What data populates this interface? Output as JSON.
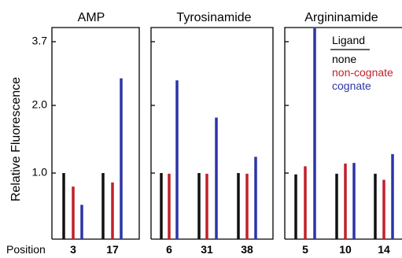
{
  "chart_data": {
    "type": "bar",
    "ylabel": "Relative Fluorescence",
    "y_ticks": [
      "1.0",
      "2.0",
      "3.7"
    ],
    "x_axis_label": "Position",
    "legend": {
      "title": "Ligand",
      "entries": [
        {
          "name": "none",
          "color": "#111111"
        },
        {
          "name": "non-cognate",
          "color": "#c0202a"
        },
        {
          "name": "cognate",
          "color": "#2b35a6"
        }
      ],
      "placement": "top-right (inside Argininamide panel)"
    },
    "series_names": [
      "none",
      "non-cognate",
      "cognate"
    ],
    "panels": [
      {
        "title": "AMP",
        "groups": [
          {
            "position": "3",
            "values": [
              1.0,
              0.8,
              0.53
            ]
          },
          {
            "position": "17",
            "values": [
              1.0,
              0.86,
              2.4
            ]
          }
        ]
      },
      {
        "title": "Tyrosinamide",
        "groups": [
          {
            "position": "6",
            "values": [
              1.0,
              0.99,
              2.37
            ]
          },
          {
            "position": "31",
            "values": [
              1.0,
              0.99,
              1.82
            ]
          },
          {
            "position": "38",
            "values": [
              1.0,
              0.99,
              1.24
            ]
          }
        ]
      },
      {
        "title": "Argininamide",
        "groups": [
          {
            "position": "5",
            "values": [
              0.98,
              1.1,
              3.6
            ]
          },
          {
            "position": "10",
            "values": [
              0.99,
              1.14,
              1.15
            ]
          },
          {
            "position": "14",
            "values": [
              0.99,
              0.9,
              1.28
            ]
          }
        ]
      }
    ]
  }
}
